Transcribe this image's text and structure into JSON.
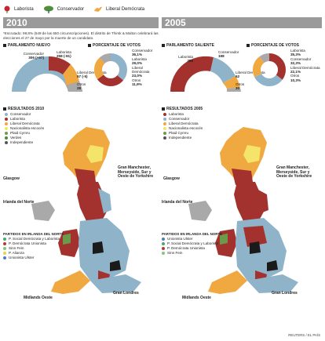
{
  "colors": {
    "laborista": "#a3322f",
    "conservador": "#8fb4c9",
    "liberal": "#f0a841",
    "otros": "#a9a9a9",
    "nacionalista": "#f4e46a",
    "plaid": "#6b9a4a",
    "verdes": "#4a8a3a",
    "independiente": "#555555",
    "header_bar": "#9a9a9a"
  },
  "top_legend": [
    {
      "label": "Laborista",
      "icon": "rose-icon"
    },
    {
      "label": "Conservador",
      "icon": "tree-icon"
    },
    {
      "label": "Liberal Demócrata",
      "icon": "bird-icon"
    }
  ],
  "panel_2010": {
    "year": "2010",
    "note": "*Escrutado: 99,8% (649 de las 650 circunscripciones). El distrito de Thirsk & Malton celebrará las elecciones el 27 de mayo por la muerte de un candidato.",
    "parliament_title": "PARLAMENTO NUEVO",
    "votes_title": "PORCENTAJE DE VOTOS",
    "seats": [
      {
        "party": "Conservador",
        "value": "306 (+97)"
      },
      {
        "party": "Laborista",
        "value": "258 (-91)"
      },
      {
        "party": "Liberal Demócrata",
        "value": "57 (-5)"
      },
      {
        "party": "Otros",
        "value": "28"
      }
    ],
    "total_label": "ESCAÑOS",
    "total_value": "650 (*)",
    "votes": [
      {
        "party": "Conservador",
        "value": "36,1%"
      },
      {
        "party": "Laborista",
        "value": "29,0%"
      },
      {
        "party": "Liberal Demócrata",
        "value": "23,0%"
      },
      {
        "party": "Otros",
        "value": "11,9%"
      }
    ],
    "results_title": "RESULTADOS 2010",
    "results_legend": [
      "Conservador",
      "Laborista",
      "Liberal Demócrata",
      "Nacionalista escocés",
      "Plaid Cymru",
      "Verdes",
      "Independiente"
    ],
    "ni_title": "PARTIDOS EN IRLANDA DEL NORTE",
    "ni_legend": [
      "P. Social Demócrata y Laborista",
      "P. Demócrata Unionista",
      "Sinn Fein",
      "P. Alianza",
      "Unionista Ulster"
    ],
    "map_labels": {
      "glasgow": "Glasgow",
      "manchester": "Gran Manchester, Merseyside, Sur y Oeste de Yorkshire",
      "irlanda": "Irlanda del Norte",
      "midlands": "Midlands Oeste",
      "londres": "Gran Londres"
    }
  },
  "panel_2005": {
    "year": "2005",
    "parliament_title": "PARLAMENTO SALIENTE",
    "votes_title": "PORCENTAJE DE VOTOS",
    "seats": [
      {
        "party": "Laborista",
        "value": "356"
      },
      {
        "party": "Conservador",
        "value": "198"
      },
      {
        "party": "Liberal Demócrata",
        "value": "62"
      },
      {
        "party": "Otros",
        "value": "30"
      }
    ],
    "total_label": "ESCAÑOS",
    "total_value": "646",
    "votes": [
      {
        "party": "Laborista",
        "value": "35,3%"
      },
      {
        "party": "Conservador",
        "value": "32,3%"
      },
      {
        "party": "Liberal Demócrata",
        "value": "22,1%"
      },
      {
        "party": "Otros",
        "value": "10,3%"
      }
    ],
    "results_title": "RESULTADOS 2005",
    "results_legend": [
      "Laborista",
      "Conservador",
      "Liberal Demócrata",
      "Nacionalista escocés",
      "Plaid Cymru",
      "Independiente"
    ],
    "ni_title": "PARTIDOS EN IRLANDA DEL NORTE",
    "ni_legend": [
      "Unionista Ulster",
      "P. Social Demócrata y Laborista",
      "P. Demócrata Unionista",
      "Sinn Fein"
    ],
    "map_labels": {
      "glasgow": "Glasgow",
      "manchester": "Gran Manchester, Merseyside, Sur y Oeste de Yorkshire",
      "irlanda": "Irlanda del Norte",
      "midlands": "Midlands Oeste",
      "londres": "Gran Londres"
    }
  },
  "source": "REUTERS / EL PAÍS"
}
